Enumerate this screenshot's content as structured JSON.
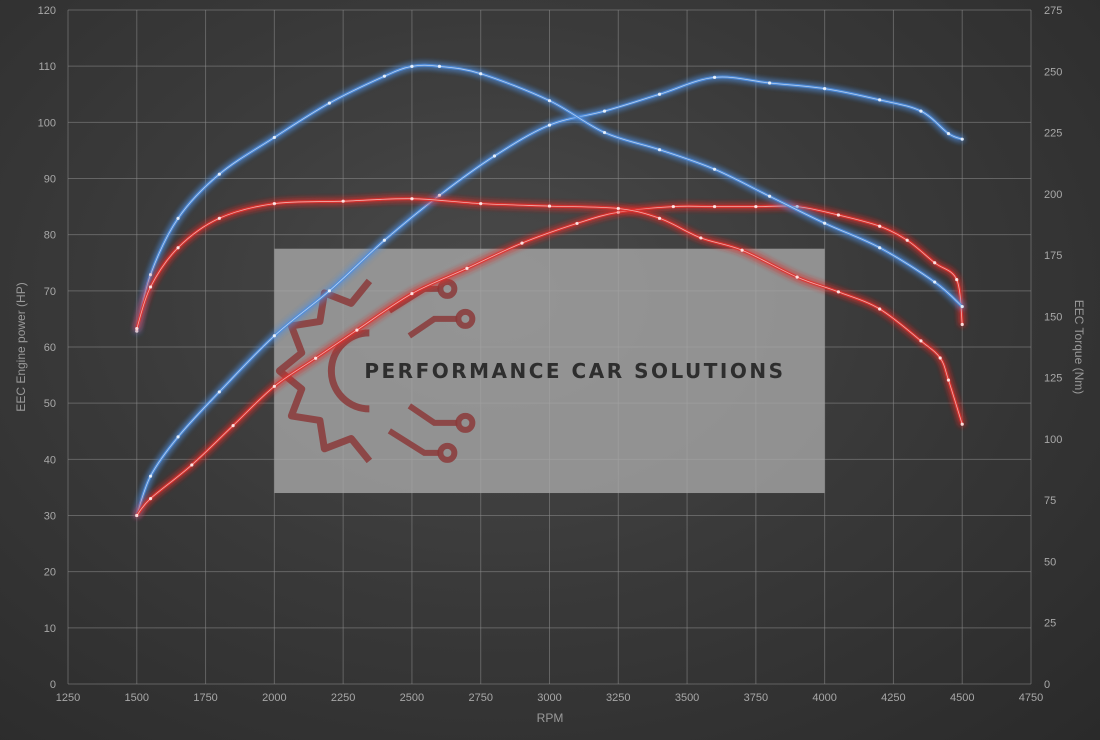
{
  "chart_data": {
    "type": "line",
    "title": "",
    "xlabel": "RPM",
    "ylabel_left": "EEC Engine power (HP)",
    "ylabel_right": "EEC Torque (Nm)",
    "xlim": [
      1250,
      4750
    ],
    "ylim_left": [
      0,
      120
    ],
    "ylim_right": [
      0,
      275
    ],
    "x_ticks": [
      1250,
      1500,
      1750,
      2000,
      2250,
      2500,
      2750,
      3000,
      3250,
      3500,
      3750,
      4000,
      4250,
      4500,
      4750
    ],
    "y_left_ticks": [
      0,
      10,
      20,
      30,
      40,
      50,
      60,
      70,
      80,
      90,
      100,
      110,
      120
    ],
    "y_right_ticks": [
      0,
      25,
      50,
      75,
      100,
      125,
      150,
      175,
      200,
      225,
      250,
      275
    ],
    "grid": true,
    "series": [
      {
        "axis": "left",
        "color": "#4f8fe0",
        "x": [
          1500,
          1550,
          1650,
          1800,
          2000,
          2200,
          2400,
          2600,
          2800,
          3000,
          3200,
          3400,
          3600,
          3800,
          4000,
          4200,
          4350,
          4450,
          4500
        ],
        "y": [
          30,
          37,
          44,
          52,
          62,
          70,
          79,
          87,
          94,
          99.5,
          102,
          105,
          108,
          107,
          106,
          104,
          102,
          98,
          97
        ]
      },
      {
        "axis": "left",
        "color": "#e0302e",
        "x": [
          1500,
          1550,
          1700,
          1850,
          2000,
          2150,
          2300,
          2500,
          2700,
          2900,
          3100,
          3250,
          3450,
          3600,
          3750,
          3900,
          4050,
          4200,
          4300,
          4400,
          4480,
          4500
        ],
        "y": [
          30,
          33,
          39,
          46,
          53,
          58,
          63,
          69.5,
          74,
          78.5,
          82,
          84,
          85,
          85,
          85,
          85,
          83.5,
          81.5,
          79,
          75,
          72,
          64
        ]
      },
      {
        "axis": "right",
        "color": "#4f8fe0",
        "x": [
          1500,
          1550,
          1650,
          1800,
          2000,
          2200,
          2400,
          2500,
          2600,
          2750,
          3000,
          3200,
          3400,
          3600,
          3800,
          4000,
          4200,
          4400,
          4500
        ],
        "y": [
          144,
          167,
          190,
          208,
          223,
          237,
          248,
          252,
          252,
          249,
          238,
          225,
          218,
          210,
          199,
          188,
          178,
          164,
          154
        ]
      },
      {
        "axis": "right",
        "color": "#e0302e",
        "x": [
          1500,
          1550,
          1650,
          1800,
          2000,
          2250,
          2500,
          2750,
          3000,
          3250,
          3400,
          3550,
          3700,
          3900,
          4050,
          4200,
          4350,
          4420,
          4450,
          4500
        ],
        "y": [
          145,
          162,
          178,
          190,
          196,
          197,
          198,
          196,
          195,
          194,
          190,
          182,
          177,
          166,
          160,
          153,
          140,
          133,
          124,
          106
        ]
      }
    ]
  },
  "logo": {
    "text": "PERFORMANCE CAR SOLUTIONS",
    "rect": {
      "x0": 2000,
      "x1": 4000,
      "y0": 34,
      "y1": 77.5
    }
  }
}
